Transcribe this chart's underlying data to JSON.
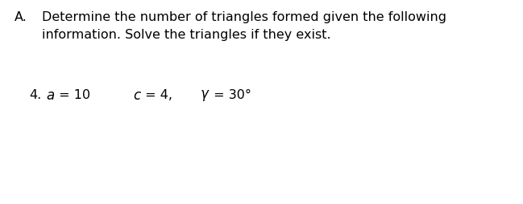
{
  "background_color": "#ffffff",
  "header_label": "A.",
  "header_text_line1": "Determine the number of triangles formed given the following",
  "header_text_line2": "information. Solve the triangles if they exist.",
  "item_number": "4.",
  "item_fontsize": 11.5,
  "header_fontsize": 11.5,
  "fig_width": 6.49,
  "fig_height": 2.55,
  "fig_dpi": 100
}
